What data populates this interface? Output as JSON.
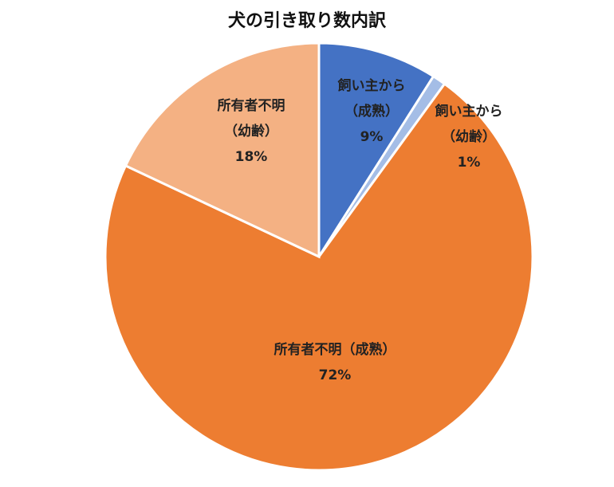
{
  "chart_data": {
    "type": "pie",
    "title": "犬の引き取り数内訳",
    "categories": [
      "飼い主から（成熟）",
      "飼い主から（幼齢）",
      "所有者不明（成熟）",
      "所有者不明（幼齢）"
    ],
    "values": [
      9,
      1,
      72,
      18
    ],
    "value_labels": [
      "9%",
      "1%",
      "72%",
      "18%"
    ],
    "colors": [
      "#4472c4",
      "#a4bde6",
      "#ed7d31",
      "#f4b183"
    ]
  }
}
